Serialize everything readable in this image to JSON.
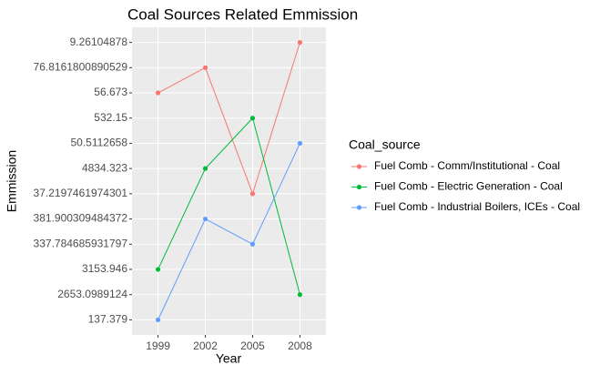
{
  "chart_data": {
    "type": "line",
    "title": "Coal Sources Related Emmission",
    "x_label": "Year",
    "y_label": "Emmission",
    "categories": [
      "1999",
      "2002",
      "2005",
      "2008"
    ],
    "y_categories": [
      137.379,
      2653.0989124,
      3153.946,
      337.784685931797,
      381.900309484372,
      37.2197461974301,
      4834.323,
      50.5112658,
      532.15,
      56.673,
      76.8161800890529,
      9.26104878
    ],
    "legend_title": "Coal_source",
    "series": [
      {
        "name": "Fuel Comb - Comm/Institutional - Coal",
        "color": "#F8766D",
        "values": [
          56.673,
          76.8161800890529,
          37.2197461974301,
          9.26104878
        ]
      },
      {
        "name": "Fuel Comb - Electric Generation - Coal",
        "color": "#00BA38",
        "values": [
          3153.946,
          4834.323,
          532.15,
          2653.0989124
        ]
      },
      {
        "name": "Fuel Comb - Industrial Boilers, ICEs - Coal",
        "color": "#619CFF",
        "values": [
          137.379,
          381.900309484372,
          337.784685931797,
          50.5112658
        ]
      }
    ],
    "grid": true
  }
}
